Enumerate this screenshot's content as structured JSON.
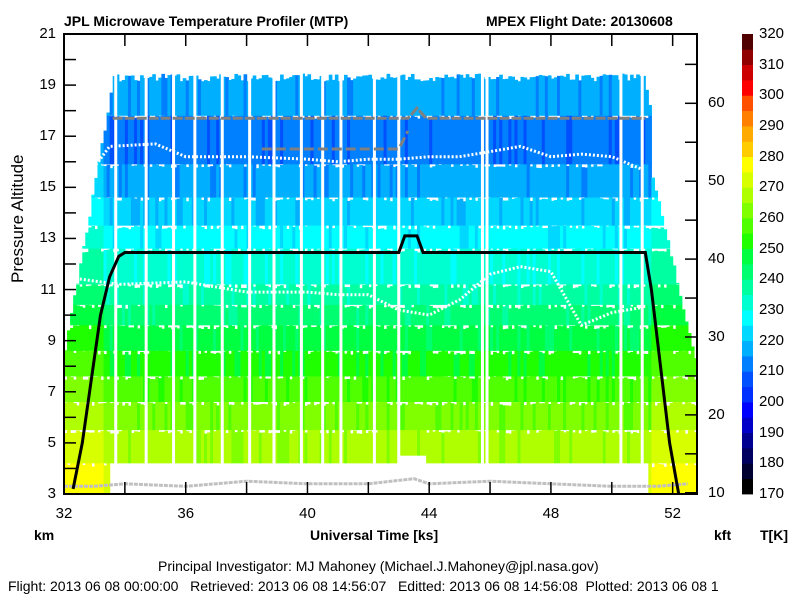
{
  "chart_data": {
    "type": "heatmap",
    "title": "JPL Microwave Temperature Profiler (MTP)",
    "subtitle": "MPEX  Flight Date: 20130608",
    "xlabel": "Universal Time [ks]",
    "ylabel": "Pressure Altitude",
    "y_unit_left": "km",
    "y_unit_right": "kft",
    "colorbar_label": "T[K]",
    "xlim": [
      32,
      52.8
    ],
    "ylim": [
      3,
      21
    ],
    "y2lim_kft": [
      10,
      68.9
    ],
    "x_ticks": [
      32,
      36,
      40,
      44,
      48,
      52
    ],
    "x_minor_ticks": [
      34,
      38,
      42,
      46,
      50
    ],
    "y_ticks": [
      3,
      5,
      7,
      9,
      11,
      13,
      15,
      17,
      19,
      21
    ],
    "y_minor_ticks": [
      4,
      6,
      8,
      10,
      12,
      14,
      16,
      18,
      20
    ],
    "y2_ticks": [
      10,
      20,
      30,
      40,
      50,
      60
    ],
    "y2_minor_ticks": [
      15,
      25,
      35,
      45,
      55,
      65
    ],
    "colorbar": {
      "min": 170,
      "max": 320,
      "step": 5,
      "tick_labels": [
        170,
        180,
        190,
        200,
        210,
        220,
        230,
        240,
        250,
        260,
        270,
        280,
        290,
        300,
        310,
        320
      ],
      "colors": [
        "#000000",
        "#000030",
        "#000060",
        "#000090",
        "#0000c8",
        "#0000ff",
        "#0030ff",
        "#0050ff",
        "#0080ff",
        "#00b0ff",
        "#00d8ff",
        "#00ffff",
        "#00ffd0",
        "#00ffa0",
        "#00ff70",
        "#00ff40",
        "#20ff00",
        "#50ff00",
        "#80ff00",
        "#b0ff00",
        "#d8ff00",
        "#ffff00",
        "#ffcc00",
        "#ffaa00",
        "#ff8000",
        "#ff5000",
        "#ff0000",
        "#cc0000",
        "#900000",
        "#500000"
      ]
    },
    "aircraft_altitude_km": {
      "x": [
        32.3,
        32.6,
        32.9,
        33.2,
        33.5,
        33.8,
        34.0,
        43.0,
        43.2,
        43.6,
        43.8,
        51.1,
        51.3,
        51.6,
        51.9,
        52.2
      ],
      "y": [
        3.2,
        5.0,
        7.5,
        10.0,
        11.5,
        12.3,
        12.45,
        12.45,
        13.1,
        13.1,
        12.45,
        12.45,
        11.0,
        8.0,
        5.0,
        3.0
      ]
    },
    "tropopause_1_km": {
      "x": [
        32,
        33.8,
        36,
        38,
        40,
        41,
        42,
        43,
        44,
        45,
        46,
        47,
        48,
        49,
        50,
        51
      ],
      "y": [
        11.5,
        11.2,
        11.3,
        10.9,
        10.9,
        10.8,
        10.8,
        10.2,
        10.0,
        10.6,
        11.6,
        11.9,
        11.7,
        9.6,
        10.1,
        10.3
      ]
    },
    "tropopause_2_km": {
      "x": [
        32.5,
        33.5,
        35,
        36,
        38,
        40,
        41,
        42,
        43,
        44,
        45,
        46,
        47,
        48,
        49,
        50,
        51
      ],
      "y": [
        15.0,
        16.6,
        16.7,
        16.2,
        16.2,
        16.1,
        16.0,
        16.1,
        16.1,
        16.2,
        16.2,
        16.4,
        16.6,
        16.2,
        16.3,
        16.2,
        15.7
      ]
    },
    "upper_gray_line_km": {
      "x": [
        33.6,
        43.3,
        43.6,
        43.9,
        51.1
      ],
      "y": [
        17.7,
        17.7,
        18.1,
        17.7,
        17.7
      ]
    },
    "mid_gray_line_km": {
      "x": [
        38.5,
        43.0,
        43.3
      ],
      "y": [
        16.5,
        16.5,
        17.2
      ]
    },
    "ground_gray_line_km": {
      "x": [
        32,
        33,
        34,
        36,
        38,
        40,
        42,
        43.5,
        44,
        46,
        48,
        50,
        51.5,
        52.5
      ],
      "y": [
        3.3,
        3.3,
        3.4,
        3.3,
        3.5,
        3.4,
        3.4,
        3.6,
        3.4,
        3.5,
        3.4,
        3.3,
        3.3,
        3.4
      ]
    },
    "data_gaps_ks": [
      33.7,
      34.7,
      35.6,
      36.3,
      37.2,
      38.1,
      38.9,
      39.8,
      40.5,
      41.1,
      42.2,
      43.0,
      45.75,
      45.9,
      50.3,
      51.0
    ],
    "bands_by_altitude_km": [
      {
        "y0": 3.0,
        "y1": 4.2,
        "T": 272
      },
      {
        "y0": 4.2,
        "y1": 5.5,
        "T": 266
      },
      {
        "y0": 5.5,
        "y1": 6.6,
        "T": 261
      },
      {
        "y0": 6.6,
        "y1": 7.6,
        "T": 256
      },
      {
        "y0": 7.6,
        "y1": 8.6,
        "T": 251
      },
      {
        "y0": 8.6,
        "y1": 9.6,
        "T": 246
      },
      {
        "y0": 9.6,
        "y1": 10.4,
        "T": 241
      },
      {
        "y0": 10.4,
        "y1": 11.2,
        "T": 236
      },
      {
        "y0": 11.2,
        "y1": 12.6,
        "T": 231
      },
      {
        "y0": 12.6,
        "y1": 13.5,
        "T": 226
      },
      {
        "y0": 13.5,
        "y1": 14.6,
        "T": 221
      },
      {
        "y0": 14.6,
        "y1": 15.9,
        "T": 216
      },
      {
        "y0": 15.9,
        "y1": 17.8,
        "T": 211
      },
      {
        "y0": 17.8,
        "y1": 19.3,
        "T": 216
      }
    ]
  },
  "footer": {
    "investigator": "Principal Investigator: MJ Mahoney (Michael.J.Mahoney@jpl.nasa.gov)",
    "timestamps": "Flight: 2013 06 08 00:00:00   Retrieved: 2013 06 08 14:56:07   Editted: 2013 06 08 14:56:08  Plotted: 2013 06 08 1"
  }
}
